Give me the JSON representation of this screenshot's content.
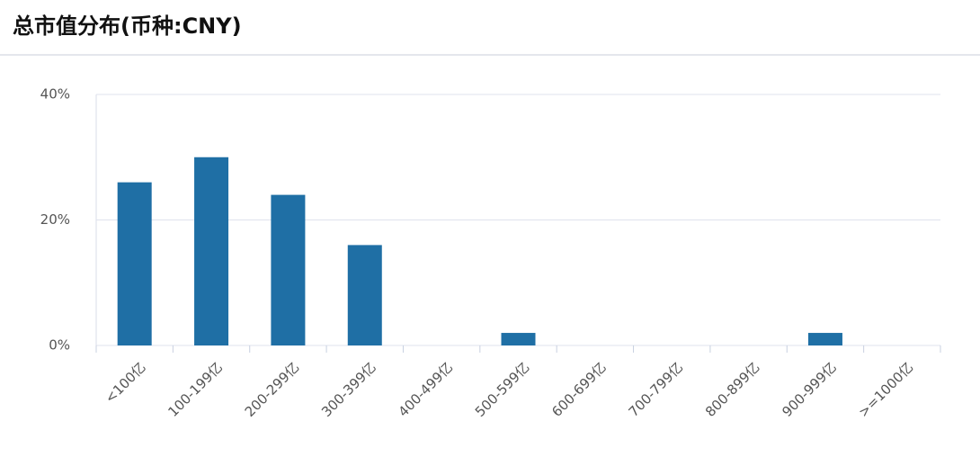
{
  "chart_data": {
    "type": "bar",
    "title": "总市值分布(币种:CNY)",
    "categories": [
      "<100亿",
      "100-199亿",
      "200-299亿",
      "300-399亿",
      "400-499亿",
      "500-599亿",
      "600-699亿",
      "700-799亿",
      "800-899亿",
      "900-999亿",
      ">=1000亿"
    ],
    "values": [
      26,
      30,
      24,
      16,
      0,
      2,
      0,
      0,
      0,
      2,
      0
    ],
    "color": "#1f6fa5",
    "ylim": [
      0,
      40
    ],
    "yticks": [
      {
        "value": 0,
        "label": "0%"
      },
      {
        "value": 20,
        "label": "20%"
      },
      {
        "value": 40,
        "label": "40%"
      }
    ],
    "grid": true
  }
}
